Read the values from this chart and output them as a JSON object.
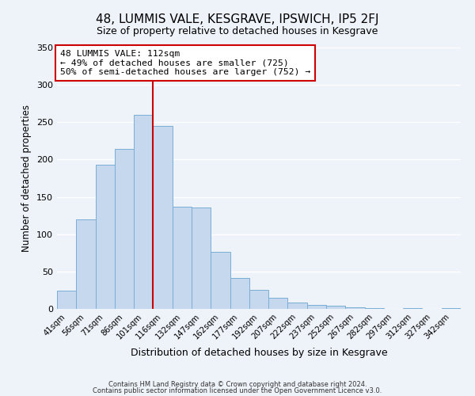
{
  "title": "48, LUMMIS VALE, KESGRAVE, IPSWICH, IP5 2FJ",
  "subtitle": "Size of property relative to detached houses in Kesgrave",
  "xlabel": "Distribution of detached houses by size in Kesgrave",
  "ylabel": "Number of detached properties",
  "bin_labels": [
    "41sqm",
    "56sqm",
    "71sqm",
    "86sqm",
    "101sqm",
    "116sqm",
    "132sqm",
    "147sqm",
    "162sqm",
    "177sqm",
    "192sqm",
    "207sqm",
    "222sqm",
    "237sqm",
    "252sqm",
    "267sqm",
    "282sqm",
    "297sqm",
    "312sqm",
    "327sqm",
    "342sqm"
  ],
  "bar_values": [
    24,
    120,
    193,
    214,
    260,
    245,
    137,
    136,
    76,
    41,
    25,
    15,
    8,
    5,
    4,
    2,
    1,
    0,
    1,
    0,
    1
  ],
  "bar_color": "#c5d8ed",
  "bar_edge_color": "#7aaed6",
  "vline_color": "#cc0000",
  "annotation_text": "48 LUMMIS VALE: 112sqm\n← 49% of detached houses are smaller (725)\n50% of semi-detached houses are larger (752) →",
  "annotation_box_color": "#ffffff",
  "annotation_box_edge_color": "#cc0000",
  "ylim": [
    0,
    350
  ],
  "yticks": [
    0,
    50,
    100,
    150,
    200,
    250,
    300,
    350
  ],
  "footnote1": "Contains HM Land Registry data © Crown copyright and database right 2024.",
  "footnote2": "Contains public sector information licensed under the Open Government Licence v3.0.",
  "bg_color": "#eef2f9"
}
